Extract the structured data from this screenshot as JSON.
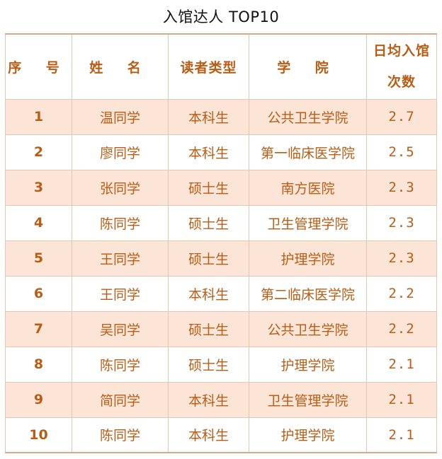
{
  "title": "入馆达人 TOP10",
  "headers": {
    "rank": "序 号",
    "name": "姓 名",
    "reader_type": "读者类型",
    "college": "学 院",
    "visits_line1": "日均入馆",
    "visits_line2": "次数"
  },
  "rows": [
    {
      "rank": "1",
      "name": "温同学",
      "reader_type": "本科生",
      "college": "公共卫生学院",
      "visits": "2.7"
    },
    {
      "rank": "2",
      "name": "廖同学",
      "reader_type": "本科生",
      "college": "第一临床医学院",
      "visits": "2.5"
    },
    {
      "rank": "3",
      "name": "张同学",
      "reader_type": "硕士生",
      "college": "南方医院",
      "visits": "2.3"
    },
    {
      "rank": "4",
      "name": "陈同学",
      "reader_type": "硕士生",
      "college": "卫生管理学院",
      "visits": "2.3"
    },
    {
      "rank": "5",
      "name": "王同学",
      "reader_type": "硕士生",
      "college": "护理学院",
      "visits": "2.3"
    },
    {
      "rank": "6",
      "name": "王同学",
      "reader_type": "本科生",
      "college": "第二临床医学院",
      "visits": "2.2"
    },
    {
      "rank": "7",
      "name": "吴同学",
      "reader_type": "硕士生",
      "college": "公共卫生学院",
      "visits": "2.2"
    },
    {
      "rank": "8",
      "name": "陈同学",
      "reader_type": "硕士生",
      "college": "护理学院",
      "visits": "2.1"
    },
    {
      "rank": "9",
      "name": "简同学",
      "reader_type": "本科生",
      "college": "卫生管理学院",
      "visits": "2.1"
    },
    {
      "rank": "10",
      "name": "陈同学",
      "reader_type": "本科生",
      "college": "护理学院",
      "visits": "2.1"
    }
  ],
  "colors": {
    "text": "#b85d16",
    "stripe": "#fce4d6",
    "border": "#e2c7b3",
    "title": "#111111"
  }
}
